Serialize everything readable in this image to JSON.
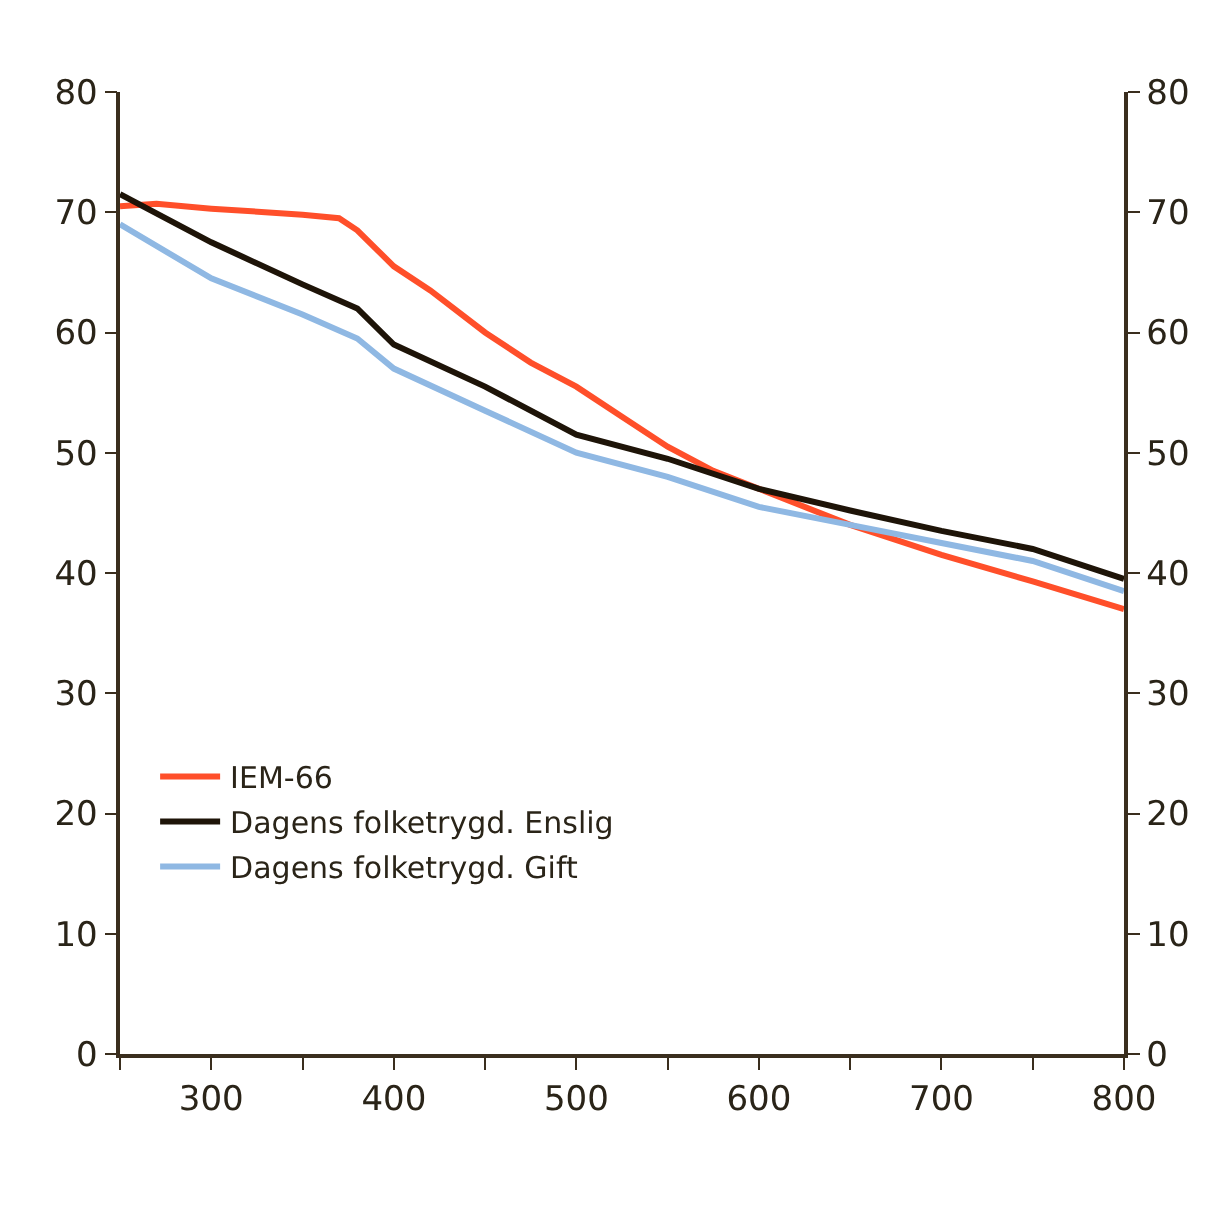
{
  "chart_data": {
    "type": "line",
    "xlim": [
      250,
      800
    ],
    "ylim": [
      0,
      80
    ],
    "y2lim": [
      0,
      80
    ],
    "xticks": [
      {
        "value": 250,
        "label": null
      },
      300,
      {
        "value": 350,
        "label": null
      },
      400,
      {
        "value": 450,
        "label": null
      },
      500,
      {
        "value": 550,
        "label": null
      },
      600,
      {
        "value": 650,
        "label": null
      },
      700,
      {
        "value": 750,
        "label": null
      },
      800
    ],
    "yticks": [
      0,
      10,
      20,
      30,
      40,
      50,
      60,
      70,
      80
    ],
    "y2ticks": [
      0,
      10,
      20,
      30,
      40,
      50,
      60,
      70,
      80
    ],
    "legend": "bottom left",
    "marker": "none",
    "line_style": "solid",
    "series": [
      {
        "name": "IEM-66",
        "color": "#ff4f2a",
        "x": [
          250,
          270,
          300,
          350,
          370,
          380,
          390,
          400,
          420,
          450,
          475,
          500,
          525,
          550,
          575,
          600,
          650,
          700,
          750,
          800
        ],
        "values": [
          70.5,
          70.7,
          70.3,
          69.8,
          69.5,
          68.5,
          67,
          65.5,
          63.5,
          60,
          57.5,
          55.5,
          53,
          50.5,
          48.5,
          47,
          44,
          41.5,
          39.3,
          37
        ]
      },
      {
        "name": "Dagens folketrygd. Enslig",
        "color": "#1e1408",
        "x": [
          250,
          300,
          350,
          380,
          400,
          450,
          500,
          550,
          600,
          650,
          700,
          750,
          800
        ],
        "values": [
          71.5,
          67.5,
          64,
          62,
          59,
          55.5,
          51.5,
          49.5,
          47,
          45.2,
          43.5,
          42,
          39.5
        ]
      },
      {
        "name": "Dagens folketrygd. Gift",
        "color": "#8fb8e3",
        "x": [
          250,
          300,
          350,
          380,
          400,
          450,
          500,
          550,
          600,
          650,
          700,
          750,
          800
        ],
        "values": [
          69,
          64.5,
          61.5,
          59.5,
          57,
          53.5,
          50,
          48,
          45.5,
          44,
          42.5,
          41,
          38.5
        ]
      }
    ]
  }
}
